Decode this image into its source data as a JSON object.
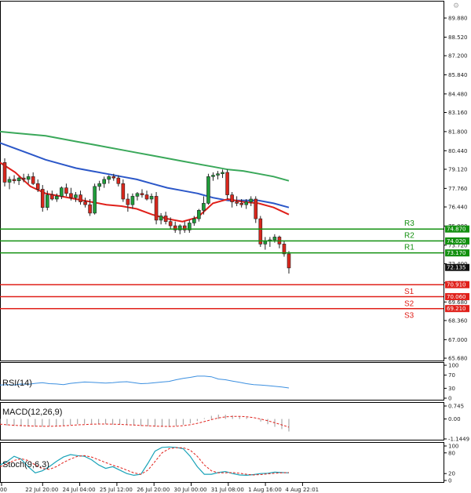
{
  "chart_data": {
    "type": "candlestick",
    "price_axis": {
      "ticks": [
        "89.880",
        "88.520",
        "87.200",
        "85.840",
        "84.480",
        "83.160",
        "81.800",
        "80.440",
        "79.120",
        "77.760",
        "76.440",
        "75.080",
        "73.720",
        "72.400",
        "71.040",
        "69.680",
        "68.360",
        "67.000",
        "65.680"
      ],
      "range": [
        65.68,
        89.88
      ]
    },
    "current_price": "72.135",
    "levels": [
      {
        "name": "R3",
        "value": "74.870",
        "kind": "resistance",
        "color": "#139010"
      },
      {
        "name": "R2",
        "value": "74.020",
        "kind": "resistance",
        "color": "#139010"
      },
      {
        "name": "R1",
        "value": "73.170",
        "kind": "resistance",
        "color": "#139010"
      },
      {
        "name": "S1",
        "value": "70.910",
        "kind": "support",
        "color": "#e0201a"
      },
      {
        "name": "S2",
        "value": "70.060",
        "kind": "support",
        "color": "#e0201a"
      },
      {
        "name": "S3",
        "value": "69.210",
        "kind": "support",
        "color": "#e0201a"
      }
    ],
    "time_labels": [
      "00",
      "22 Jul 20:00",
      "24 Jul 04:00",
      "25 Jul 12:00",
      "26 Jul 20:00",
      "30 Jul 00:00",
      "31 Jul 08:00",
      "1 Aug 16:00",
      "4 Aug 22:01"
    ],
    "candles": [
      {
        "o": 79.6,
        "h": 79.9,
        "l": 77.9,
        "c": 78.2
      },
      {
        "o": 78.2,
        "h": 78.6,
        "l": 77.7,
        "c": 78.4
      },
      {
        "o": 78.4,
        "h": 78.7,
        "l": 78.1,
        "c": 78.3
      },
      {
        "o": 78.3,
        "h": 78.6,
        "l": 78.0,
        "c": 78.5
      },
      {
        "o": 78.5,
        "h": 78.8,
        "l": 78.2,
        "c": 78.4
      },
      {
        "o": 78.4,
        "h": 78.8,
        "l": 78.1,
        "c": 78.6
      },
      {
        "o": 78.6,
        "h": 78.9,
        "l": 78.0,
        "c": 78.1
      },
      {
        "o": 78.1,
        "h": 78.4,
        "l": 77.5,
        "c": 77.7
      },
      {
        "o": 77.7,
        "h": 78.0,
        "l": 76.1,
        "c": 76.4
      },
      {
        "o": 76.4,
        "h": 77.6,
        "l": 76.2,
        "c": 77.3
      },
      {
        "o": 77.3,
        "h": 77.6,
        "l": 76.9,
        "c": 77.0
      },
      {
        "o": 77.0,
        "h": 77.4,
        "l": 76.8,
        "c": 77.2
      },
      {
        "o": 77.2,
        "h": 77.9,
        "l": 77.0,
        "c": 77.8
      },
      {
        "o": 77.8,
        "h": 78.1,
        "l": 77.2,
        "c": 77.4
      },
      {
        "o": 77.4,
        "h": 77.8,
        "l": 76.9,
        "c": 77.1
      },
      {
        "o": 77.1,
        "h": 77.5,
        "l": 76.8,
        "c": 77.3
      },
      {
        "o": 77.3,
        "h": 77.6,
        "l": 76.6,
        "c": 76.8
      },
      {
        "o": 76.8,
        "h": 77.1,
        "l": 76.4,
        "c": 76.6
      },
      {
        "o": 76.6,
        "h": 77.0,
        "l": 75.8,
        "c": 76.0
      },
      {
        "o": 76.0,
        "h": 78.1,
        "l": 75.9,
        "c": 77.9
      },
      {
        "o": 77.9,
        "h": 78.3,
        "l": 77.6,
        "c": 78.1
      },
      {
        "o": 78.1,
        "h": 78.6,
        "l": 77.8,
        "c": 78.4
      },
      {
        "o": 78.4,
        "h": 78.7,
        "l": 78.1,
        "c": 78.6
      },
      {
        "o": 78.6,
        "h": 78.8,
        "l": 78.3,
        "c": 78.5
      },
      {
        "o": 78.5,
        "h": 78.7,
        "l": 77.9,
        "c": 78.1
      },
      {
        "o": 78.1,
        "h": 78.4,
        "l": 76.8,
        "c": 77.0
      },
      {
        "o": 77.0,
        "h": 77.4,
        "l": 76.1,
        "c": 76.6
      },
      {
        "o": 76.6,
        "h": 77.4,
        "l": 76.3,
        "c": 77.2
      },
      {
        "o": 77.2,
        "h": 77.5,
        "l": 76.9,
        "c": 77.4
      },
      {
        "o": 77.4,
        "h": 77.7,
        "l": 77.1,
        "c": 77.3
      },
      {
        "o": 77.3,
        "h": 77.6,
        "l": 76.9,
        "c": 77.0
      },
      {
        "o": 77.0,
        "h": 77.4,
        "l": 76.7,
        "c": 77.2
      },
      {
        "o": 77.2,
        "h": 77.5,
        "l": 75.2,
        "c": 75.5
      },
      {
        "o": 75.5,
        "h": 76.0,
        "l": 75.2,
        "c": 75.8
      },
      {
        "o": 75.8,
        "h": 76.1,
        "l": 75.2,
        "c": 75.4
      },
      {
        "o": 75.4,
        "h": 75.7,
        "l": 74.9,
        "c": 75.1
      },
      {
        "o": 75.1,
        "h": 75.4,
        "l": 74.6,
        "c": 74.8
      },
      {
        "o": 74.8,
        "h": 75.2,
        "l": 74.5,
        "c": 75.1
      },
      {
        "o": 75.1,
        "h": 75.4,
        "l": 74.6,
        "c": 74.8
      },
      {
        "o": 74.8,
        "h": 75.5,
        "l": 74.6,
        "c": 75.3
      },
      {
        "o": 75.3,
        "h": 75.8,
        "l": 75.1,
        "c": 75.6
      },
      {
        "o": 75.6,
        "h": 76.3,
        "l": 75.4,
        "c": 76.2
      },
      {
        "o": 76.2,
        "h": 77.2,
        "l": 75.9,
        "c": 76.7
      },
      {
        "o": 76.7,
        "h": 78.8,
        "l": 76.6,
        "c": 78.6
      },
      {
        "o": 78.6,
        "h": 78.9,
        "l": 78.3,
        "c": 78.7
      },
      {
        "o": 78.7,
        "h": 79.0,
        "l": 78.4,
        "c": 78.8
      },
      {
        "o": 78.8,
        "h": 79.1,
        "l": 78.5,
        "c": 78.9
      },
      {
        "o": 78.9,
        "h": 79.1,
        "l": 77.0,
        "c": 77.3
      },
      {
        "o": 77.3,
        "h": 77.5,
        "l": 76.4,
        "c": 76.8
      },
      {
        "o": 76.8,
        "h": 77.2,
        "l": 76.5,
        "c": 76.7
      },
      {
        "o": 76.7,
        "h": 77.0,
        "l": 76.4,
        "c": 76.6
      },
      {
        "o": 76.6,
        "h": 77.0,
        "l": 76.3,
        "c": 76.8
      },
      {
        "o": 76.8,
        "h": 77.2,
        "l": 76.5,
        "c": 77.0
      },
      {
        "o": 77.0,
        "h": 77.2,
        "l": 75.3,
        "c": 75.6
      },
      {
        "o": 75.6,
        "h": 75.8,
        "l": 73.6,
        "c": 73.8
      },
      {
        "o": 73.8,
        "h": 74.3,
        "l": 73.4,
        "c": 74.0
      },
      {
        "o": 74.0,
        "h": 74.3,
        "l": 73.6,
        "c": 74.1
      },
      {
        "o": 74.1,
        "h": 74.5,
        "l": 73.9,
        "c": 74.3
      },
      {
        "o": 74.3,
        "h": 74.4,
        "l": 73.5,
        "c": 73.8
      },
      {
        "o": 73.8,
        "h": 74.0,
        "l": 72.9,
        "c": 73.1
      },
      {
        "o": 73.1,
        "h": 73.3,
        "l": 71.7,
        "c": 72.1
      }
    ],
    "moving_averages": [
      {
        "name": "MA slow",
        "color": "#3aa85a",
        "values": [
          81.8,
          81.7,
          81.6,
          81.5,
          81.3,
          81.1,
          80.9,
          80.7,
          80.5,
          80.3,
          80.1,
          79.9,
          79.7,
          79.5,
          79.3,
          79.1,
          79.0,
          78.8,
          78.6,
          78.3
        ]
      },
      {
        "name": "MA mid",
        "color": "#2b57c8",
        "values": [
          81.0,
          80.6,
          80.2,
          79.8,
          79.5,
          79.2,
          79.0,
          78.8,
          78.6,
          78.4,
          78.1,
          77.8,
          77.6,
          77.4,
          77.1,
          76.9,
          76.9,
          76.9,
          76.7,
          76.4
        ]
      },
      {
        "name": "MA fast",
        "color": "#e0201a",
        "values": [
          79.6,
          78.9,
          77.9,
          77.4,
          77.2,
          77.0,
          76.8,
          76.6,
          76.5,
          76.3,
          75.9,
          75.6,
          75.4,
          75.7,
          76.7,
          77.0,
          76.8,
          76.7,
          76.4,
          75.9
        ]
      }
    ],
    "rsi": {
      "label": "RSI(14)",
      "ticks": [
        "100",
        "70",
        "30",
        "0"
      ],
      "values": [
        40,
        41,
        40,
        43,
        42,
        45,
        47,
        44,
        43,
        41,
        45,
        47,
        49,
        48,
        47,
        46,
        47,
        49,
        50,
        47,
        44,
        45,
        47,
        49,
        51,
        56,
        60,
        63,
        67,
        67,
        65,
        58,
        56,
        52,
        48,
        44,
        41,
        40,
        38,
        36,
        34,
        31
      ]
    },
    "macd": {
      "label": "MACD(12,26,9)",
      "ticks": [
        "0.745",
        "0.00",
        "-1.1449"
      ],
      "range": [
        -1.1449,
        0.745
      ],
      "histogram": [
        -0.35,
        -0.38,
        -0.4,
        -0.42,
        -0.43,
        -0.44,
        -0.44,
        -0.42,
        -0.4,
        -0.37,
        -0.34,
        -0.3,
        -0.28,
        -0.27,
        -0.27,
        -0.3,
        -0.32,
        -0.33,
        -0.34,
        -0.37,
        -0.4,
        -0.42,
        -0.44,
        -0.45,
        -0.44,
        -0.4,
        -0.33,
        -0.25,
        -0.12,
        0.05,
        0.18,
        0.25,
        0.24,
        0.2,
        0.15,
        0.1,
        0.0,
        -0.15,
        -0.3,
        -0.45,
        -0.58,
        -0.72
      ],
      "signal": [
        -0.3,
        -0.33,
        -0.36,
        -0.38,
        -0.4,
        -0.41,
        -0.42,
        -0.42,
        -0.41,
        -0.39,
        -0.37,
        -0.34,
        -0.32,
        -0.3,
        -0.29,
        -0.29,
        -0.3,
        -0.31,
        -0.33,
        -0.35,
        -0.37,
        -0.39,
        -0.41,
        -0.42,
        -0.43,
        -0.42,
        -0.38,
        -0.33,
        -0.25,
        -0.15,
        -0.04,
        0.06,
        0.12,
        0.15,
        0.15,
        0.13,
        0.08,
        0.0,
        -0.1,
        -0.22,
        -0.34,
        -0.47
      ]
    },
    "stochastic": {
      "label": "Stoch(9,6,3)",
      "ticks": [
        "100",
        "80",
        "20",
        "0"
      ],
      "k": [
        45,
        55,
        70,
        62,
        40,
        22,
        28,
        40,
        55,
        68,
        75,
        72,
        70,
        60,
        45,
        35,
        40,
        30,
        20,
        15,
        18,
        50,
        85,
        96,
        97,
        96,
        92,
        70,
        40,
        18,
        18,
        23,
        26,
        20,
        16,
        15,
        17,
        20,
        21,
        24,
        23,
        22
      ],
      "d": [
        40,
        48,
        58,
        63,
        58,
        45,
        35,
        32,
        40,
        52,
        62,
        70,
        72,
        68,
        60,
        52,
        44,
        38,
        30,
        22,
        18,
        30,
        55,
        80,
        92,
        95,
        95,
        88,
        70,
        45,
        28,
        22,
        22,
        23,
        21,
        18,
        16,
        17,
        19,
        21,
        22,
        23
      ]
    }
  }
}
